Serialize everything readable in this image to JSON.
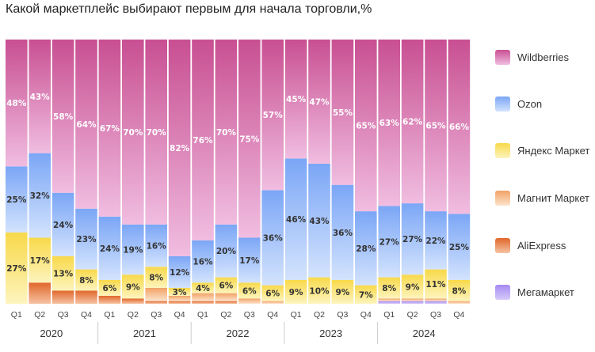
{
  "title": "Какой маркетплейс выбирают первым для начала торговли,%",
  "chart_data": {
    "type": "bar",
    "stacked": true,
    "normalized_percent": true,
    "title": "Какой маркетплейс выбирают первым для начала торговли,%",
    "ylim": [
      0,
      100
    ],
    "grid": false,
    "legend_placement": "right",
    "years": [
      "2020",
      "2021",
      "2022",
      "2023",
      "2024"
    ],
    "quarters": [
      "Q1",
      "Q2",
      "Q3",
      "Q4"
    ],
    "categories": [
      "2020 Q1",
      "2020 Q2",
      "2020 Q3",
      "2020 Q4",
      "2021 Q1",
      "2021 Q2",
      "2021 Q3",
      "2021 Q4",
      "2022 Q1",
      "2022 Q2",
      "2022 Q3",
      "2022 Q4",
      "2023 Q1",
      "2023 Q2",
      "2023 Q3",
      "2023 Q4",
      "2024 Q1",
      "2024 Q2",
      "2024 Q3",
      "2024 Q4"
    ],
    "series": [
      {
        "name": "Мегамаркет",
        "color": "#a58af0",
        "labeled": false,
        "values": [
          0,
          0,
          0,
          0,
          0,
          0,
          0,
          0,
          0,
          0,
          0,
          0,
          0,
          0,
          0,
          0,
          1,
          1,
          1,
          0
        ]
      },
      {
        "name": "AliExpress",
        "color": "#e0672a",
        "labeled": false,
        "values": [
          0,
          8,
          5,
          5,
          3,
          2,
          1,
          1,
          1,
          1,
          0,
          0,
          0,
          0,
          0,
          0,
          0,
          0,
          0,
          0
        ]
      },
      {
        "name": "Магнит Маркет",
        "color": "#f2a366",
        "labeled": false,
        "values": [
          0,
          0,
          0,
          0,
          0,
          0,
          5,
          2,
          3,
          3,
          2,
          1,
          0,
          0,
          0,
          0,
          1,
          1,
          1,
          1
        ]
      },
      {
        "name": "Яндекс Маркет",
        "color": "#f8d94a",
        "labeled": true,
        "values": [
          27,
          17,
          13,
          8,
          6,
          9,
          8,
          3,
          4,
          6,
          6,
          6,
          9,
          10,
          9,
          7,
          8,
          9,
          11,
          8
        ]
      },
      {
        "name": "Ozon",
        "color": "#7ba6f6",
        "labeled": true,
        "values": [
          25,
          32,
          24,
          23,
          24,
          19,
          16,
          12,
          16,
          20,
          17,
          36,
          46,
          43,
          36,
          28,
          27,
          27,
          22,
          25
        ]
      },
      {
        "name": "Wildberries",
        "color": "#c84f92",
        "labeled": true,
        "values": [
          48,
          43,
          58,
          64,
          67,
          70,
          70,
          82,
          76,
          70,
          75,
          57,
          45,
          47,
          55,
          65,
          63,
          62,
          65,
          66
        ]
      }
    ],
    "legend_order": [
      "Wildberries",
      "Ozon",
      "Яндекс Маркет",
      "Магнит Маркет",
      "AliExpress",
      "Мегамаркет"
    ]
  }
}
